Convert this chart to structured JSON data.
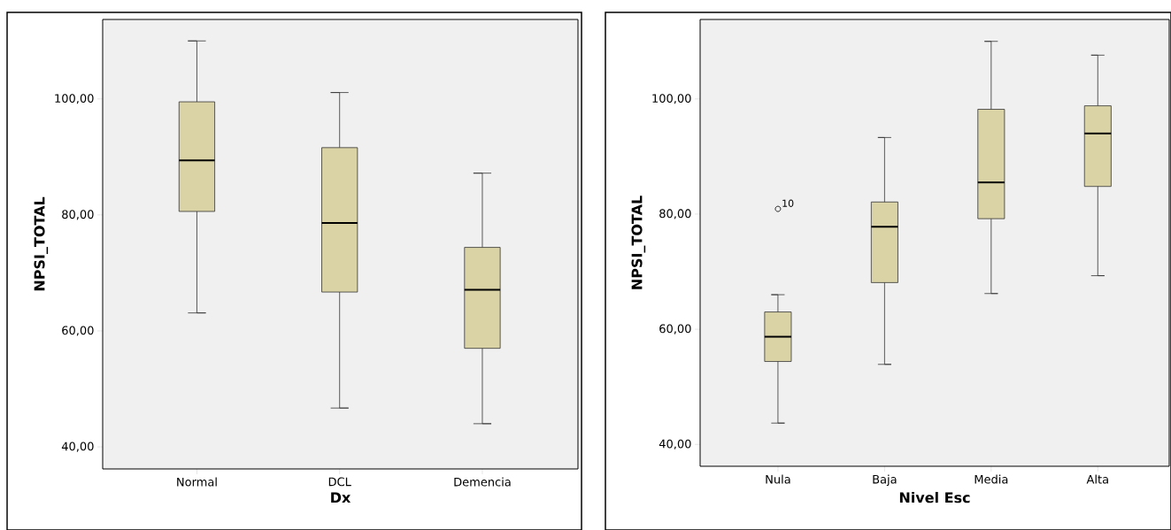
{
  "chart_data": [
    {
      "type": "box",
      "xlabel": "Dx",
      "ylabel": "NPSI_TOTAL",
      "categories": [
        "Normal",
        "DCL",
        "Demencia"
      ],
      "series": [
        {
          "color": "#d9d3a6",
          "boxes": [
            {
              "low": 63.1,
              "q1": 80.6,
              "median": 89.4,
              "q3": 99.5,
              "high": 110.0
            },
            {
              "low": 46.7,
              "q1": 66.7,
              "median": 78.6,
              "q3": 91.6,
              "high": 101.1
            },
            {
              "low": 44.0,
              "q1": 57.0,
              "median": 67.1,
              "q3": 74.4,
              "high": 87.2
            }
          ]
        }
      ],
      "ylim": [
        36.2,
        113.7
      ],
      "yticks": [
        {
          "value": 40,
          "label": "40,00"
        },
        {
          "value": 60,
          "label": "60,00"
        },
        {
          "value": 80,
          "label": "80,00"
        },
        {
          "value": 100,
          "label": "100,00"
        }
      ]
    },
    {
      "type": "box",
      "xlabel": "Nivel Esc",
      "ylabel": "NPSI_TOTAL",
      "categories": [
        "Nula",
        "Baja",
        "Media",
        "Alta"
      ],
      "series": [
        {
          "color": "#d9d3a6",
          "boxes": [
            {
              "low": 43.7,
              "q1": 54.4,
              "median": 58.7,
              "q3": 63.0,
              "high": 66.0,
              "outliers": [
                80.9
              ]
            },
            {
              "low": 53.9,
              "q1": 68.1,
              "median": 77.8,
              "q3": 82.1,
              "high": 93.3
            },
            {
              "low": 66.2,
              "q1": 79.2,
              "median": 85.5,
              "q3": 98.2,
              "high": 110.0
            },
            {
              "low": 69.3,
              "q1": 84.8,
              "median": 94.0,
              "q3": 98.8,
              "high": 107.6
            }
          ]
        }
      ],
      "ylim": [
        36.2,
        113.8
      ],
      "yticks": [
        {
          "value": 40,
          "label": "40,00"
        },
        {
          "value": 60,
          "label": "60,00"
        },
        {
          "value": 80,
          "label": "80,00"
        },
        {
          "value": 100,
          "label": "100,00"
        }
      ],
      "annotations": [
        "10"
      ]
    }
  ]
}
